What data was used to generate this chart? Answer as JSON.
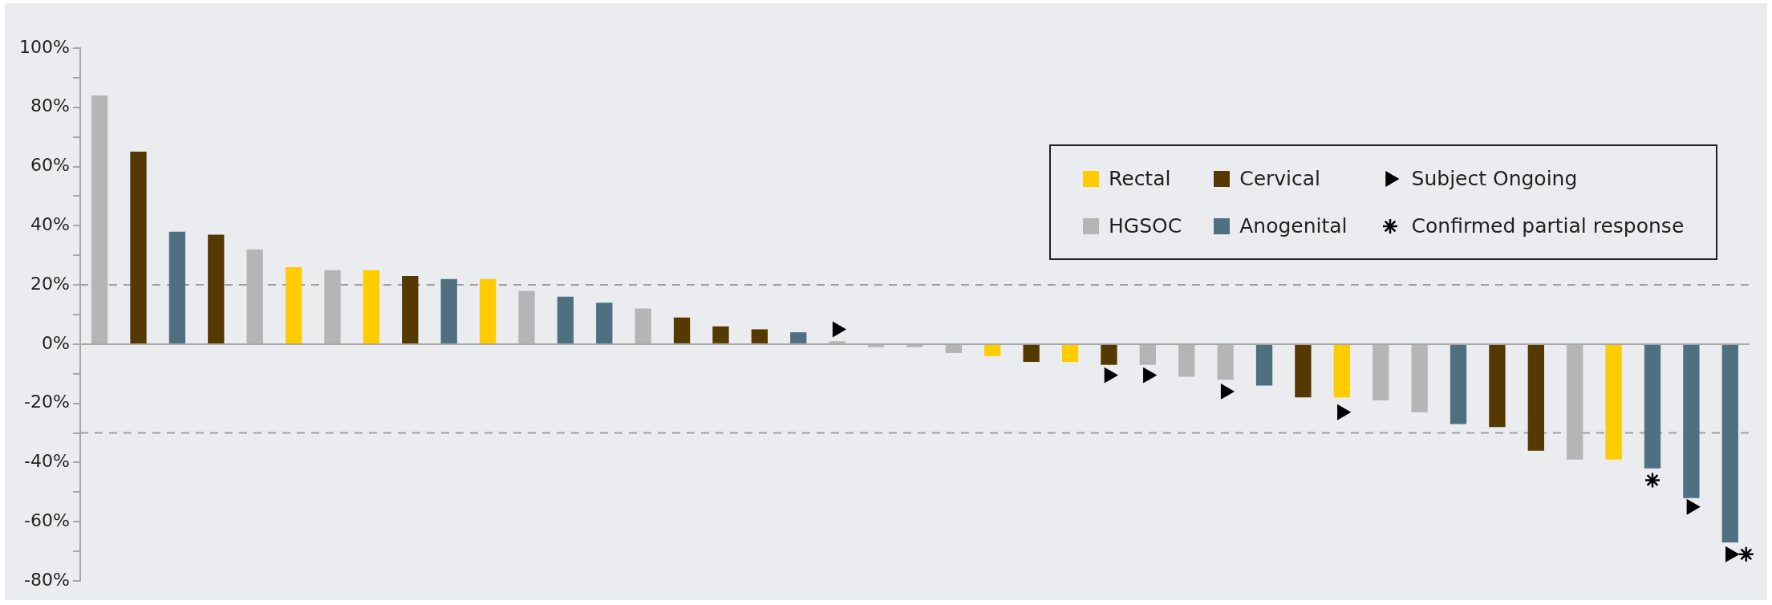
{
  "chart_data": {
    "type": "bar",
    "categories": [
      null,
      null,
      null,
      null,
      null,
      null,
      null,
      null,
      null,
      null,
      null,
      null,
      null,
      null,
      null,
      null,
      null,
      null,
      null,
      null,
      null,
      null,
      null,
      null,
      null,
      null,
      null,
      null,
      null,
      null,
      null,
      null,
      null,
      null,
      null,
      null,
      null,
      null,
      null,
      null,
      null,
      null,
      null
    ],
    "series": [
      {
        "name": "Rectal",
        "color": "#ffcc00",
        "values": [
          null,
          null,
          null,
          null,
          null,
          26,
          null,
          25,
          null,
          null,
          22,
          null,
          null,
          null,
          null,
          null,
          null,
          null,
          null,
          null,
          null,
          null,
          null,
          -4,
          null,
          -6,
          null,
          null,
          null,
          null,
          null,
          null,
          -18,
          null,
          null,
          null,
          null,
          null,
          null,
          -39,
          null,
          null,
          null
        ]
      },
      {
        "name": "Cervical",
        "color": "#553900",
        "values": [
          null,
          65,
          null,
          37,
          null,
          null,
          null,
          null,
          23,
          null,
          null,
          null,
          null,
          null,
          null,
          9,
          6,
          5,
          null,
          null,
          null,
          null,
          null,
          null,
          -6,
          null,
          -7,
          null,
          null,
          null,
          null,
          -18,
          null,
          null,
          null,
          null,
          -28,
          -36,
          null,
          null,
          null,
          null,
          null
        ]
      },
      {
        "name": "HGSOC",
        "color": "#b5b5b5",
        "values": [
          84,
          null,
          null,
          null,
          32,
          null,
          25,
          null,
          null,
          null,
          null,
          18,
          null,
          null,
          12,
          null,
          null,
          null,
          null,
          1,
          -1,
          -1,
          -3,
          null,
          null,
          null,
          null,
          -7,
          -11,
          -12,
          null,
          null,
          null,
          -19,
          -23,
          null,
          null,
          null,
          -39,
          null,
          null,
          null,
          null
        ]
      },
      {
        "name": "Anogenital",
        "color": "#4e7080",
        "values": [
          null,
          null,
          38,
          null,
          null,
          null,
          null,
          null,
          null,
          22,
          null,
          null,
          16,
          14,
          null,
          null,
          null,
          null,
          4,
          null,
          null,
          null,
          null,
          null,
          null,
          null,
          null,
          null,
          null,
          null,
          -14,
          null,
          null,
          null,
          null,
          -27,
          null,
          null,
          null,
          null,
          -42,
          -52,
          -67
        ]
      },
      {
        "name": "Subject Ongoing",
        "type": "scatter",
        "marker": "triangle",
        "color": "#000000",
        "values": [
          null,
          null,
          null,
          null,
          null,
          null,
          null,
          null,
          null,
          null,
          null,
          null,
          null,
          null,
          null,
          null,
          null,
          null,
          null,
          5,
          null,
          null,
          null,
          null,
          null,
          null,
          -10.5,
          -10.5,
          null,
          -16,
          null,
          null,
          -23,
          null,
          null,
          null,
          null,
          null,
          null,
          null,
          null,
          -55,
          -71
        ]
      },
      {
        "name": "Confirmed partial response",
        "type": "scatter",
        "marker": "cross",
        "color": "#000000",
        "values": [
          null,
          null,
          null,
          null,
          null,
          null,
          null,
          null,
          null,
          null,
          null,
          null,
          null,
          null,
          null,
          null,
          null,
          null,
          null,
          null,
          null,
          null,
          null,
          null,
          null,
          null,
          null,
          null,
          null,
          null,
          null,
          null,
          null,
          null,
          null,
          null,
          null,
          null,
          null,
          null,
          -46,
          null,
          -71
        ]
      }
    ],
    "ylim": [
      -80,
      100
    ],
    "yticks": [
      {
        "value": -80,
        "label": "-80%"
      },
      {
        "value": -70,
        "label": null
      },
      {
        "value": -60,
        "label": "-60%"
      },
      {
        "value": -50,
        "label": null
      },
      {
        "value": -40,
        "label": "-40%"
      },
      {
        "value": -30,
        "label": null
      },
      {
        "value": -20,
        "label": "-20%"
      },
      {
        "value": -10,
        "label": null
      },
      {
        "value": 0,
        "label": "0%"
      },
      {
        "value": 10,
        "label": null
      },
      {
        "value": 20,
        "label": "20%"
      },
      {
        "value": 30,
        "label": null
      },
      {
        "value": 40,
        "label": "40%"
      },
      {
        "value": 50,
        "label": null
      },
      {
        "value": 60,
        "label": "60%"
      },
      {
        "value": 70,
        "label": null
      },
      {
        "value": 80,
        "label": "80%"
      },
      {
        "value": 90,
        "label": null
      },
      {
        "value": 100,
        "label": "100%"
      }
    ],
    "ref_lines": [
      {
        "axis": "y",
        "value": 20,
        "color": "#a0a0a0",
        "line_style": "dashed"
      },
      {
        "axis": "y",
        "value": -30,
        "color": "#a0a0a0",
        "line_style": "dashed"
      }
    ],
    "grid": false,
    "legend": "top right",
    "tick_labels": "y"
  }
}
